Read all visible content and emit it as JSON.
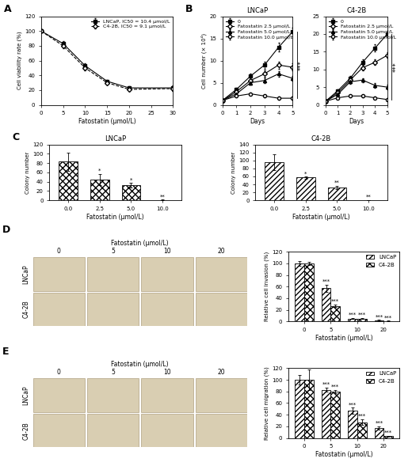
{
  "chart_data": [
    {
      "panel": "A",
      "type": "line",
      "x": [
        0,
        5,
        10,
        15,
        20,
        30
      ],
      "xlabel": "Fatostatin (μmol/L)",
      "ylabel": "Cell viability rate (%)",
      "xlim": [
        0,
        30
      ],
      "xticks": [
        0,
        5,
        10,
        15,
        20,
        25,
        30
      ],
      "ylim": [
        0,
        120
      ],
      "yticks": [
        0,
        20,
        40,
        60,
        80,
        100,
        120
      ],
      "legend": "upper right",
      "series": [
        {
          "name": "LNCaP, IC50 = 10.4 μmol/L",
          "color": "#000000",
          "marker": "square",
          "line_style": "solid",
          "values": [
            100,
            83,
            53,
            32,
            23,
            23
          ],
          "errors": [
            0,
            3,
            3,
            2,
            2,
            3
          ]
        },
        {
          "name": "C4-2B, IC50 = 9.1 μmol/L",
          "color": "#000000",
          "marker": "open_diamond",
          "line_style": "dashed",
          "values": [
            100,
            80,
            50,
            30,
            21,
            22
          ],
          "errors": [
            0,
            3,
            3,
            2,
            2,
            3
          ]
        }
      ]
    },
    {
      "panel": "B",
      "type": "line",
      "title": "LNCaP",
      "x": [
        0,
        1,
        2,
        3,
        4,
        5
      ],
      "xlabel": "Days",
      "ylabel": "Cell number (× 10⁴)",
      "xlim": [
        0,
        5
      ],
      "xticks": [
        0,
        1,
        2,
        3,
        4,
        5
      ],
      "ylim": [
        0,
        20
      ],
      "yticks": [
        0,
        5,
        10,
        15,
        20
      ],
      "legend": "upper left",
      "significance": "***",
      "series": [
        {
          "name": "0",
          "color": "#000000",
          "marker": "square",
          "line_style": "solid",
          "values": [
            1,
            3.5,
            6.5,
            9,
            13,
            16.5
          ],
          "errors": [
            0.2,
            0.4,
            0.6,
            0.8,
            1,
            1
          ]
        },
        {
          "name": "Fatostatin 2.5 μmol/L",
          "color": "#000000",
          "marker": "open_diamond",
          "line_style": "solid",
          "values": [
            1,
            3,
            5.5,
            7,
            9,
            8.5
          ],
          "errors": [
            0.2,
            0.4,
            0.6,
            0.8,
            0.8,
            0.8
          ]
        },
        {
          "name": "Fatostatin 5.0 μmol/L",
          "color": "#000000",
          "marker": "triangle",
          "line_style": "solid",
          "values": [
            1,
            2.5,
            5,
            5.5,
            7,
            6
          ],
          "errors": [
            0.2,
            0.4,
            0.5,
            0.6,
            0.6,
            0.6
          ]
        },
        {
          "name": "Fatostatin 10.0 μmol/L",
          "color": "#000000",
          "marker": "open_circle",
          "line_style": "solid",
          "values": [
            1,
            2,
            2.5,
            2,
            1.5,
            1.5
          ],
          "errors": [
            0.2,
            0.3,
            0.3,
            0.3,
            0.3,
            0.3
          ]
        }
      ]
    },
    {
      "type": "line",
      "title": "C4-2B",
      "x": [
        0,
        1,
        2,
        3,
        4,
        5
      ],
      "xlabel": "Days",
      "xlim": [
        0,
        5
      ],
      "xticks": [
        0,
        1,
        2,
        3,
        4,
        5
      ],
      "ylim": [
        0,
        25
      ],
      "yticks": [
        0,
        5,
        10,
        15,
        20,
        25
      ],
      "legend": "upper left",
      "significance": "***",
      "series": [
        {
          "name": "0",
          "color": "#000000",
          "marker": "square",
          "line_style": "solid",
          "values": [
            1,
            4,
            7.5,
            12,
            16,
            20
          ],
          "errors": [
            0.2,
            0.4,
            0.6,
            0.8,
            1,
            1
          ]
        },
        {
          "name": "Fatostatin 2.5 μmol/L",
          "color": "#000000",
          "marker": "open_diamond",
          "line_style": "solid",
          "values": [
            1,
            3.5,
            7,
            10.5,
            12,
            14
          ],
          "errors": [
            0.2,
            0.4,
            0.6,
            0.8,
            0.8,
            0.8
          ]
        },
        {
          "name": "Fatostatin 5.0 μmol/L",
          "color": "#000000",
          "marker": "triangle",
          "line_style": "solid",
          "values": [
            1,
            3,
            6.5,
            7,
            5.5,
            5
          ],
          "errors": [
            0.2,
            0.4,
            0.5,
            0.6,
            0.6,
            0.6
          ]
        },
        {
          "name": "Fatostatin 10.0 μmol/L",
          "color": "#000000",
          "marker": "open_circle",
          "line_style": "solid",
          "values": [
            1,
            2,
            2.5,
            2.5,
            2,
            1.5
          ],
          "errors": [
            0.2,
            0.3,
            0.3,
            0.3,
            0.3,
            0.3
          ]
        }
      ]
    },
    {
      "panel": "C",
      "type": "bar",
      "title": "LNCaP",
      "categories": [
        "0.0",
        "2.5",
        "5.0",
        "10.0"
      ],
      "xlabel": "Fatostatin (μmol/L)",
      "ylabel": "Colony number",
      "ylim": [
        0,
        120
      ],
      "yticks": [
        0,
        20,
        40,
        60,
        80,
        100,
        120
      ],
      "series": [
        {
          "color": "#ffffff",
          "values": [
            83,
            45,
            32,
            1
          ],
          "errors": [
            20,
            12,
            5,
            0.5
          ],
          "annotations": [
            null,
            "*",
            "*",
            "**"
          ]
        }
      ]
    },
    {
      "type": "bar",
      "title": "C4-2B",
      "categories": [
        "0.0",
        "2.5",
        "5.0",
        "10.0"
      ],
      "xlabel": "Fatostatin (μmol/L)",
      "ylabel": "Colony number",
      "ylim": [
        0,
        140
      ],
      "yticks": [
        0,
        20,
        40,
        60,
        80,
        100,
        120,
        140
      ],
      "series": [
        {
          "color": "#ffffff",
          "values": [
            95,
            57,
            33,
            1
          ],
          "errors": [
            20,
            3,
            4,
            0.5
          ],
          "annotations": [
            null,
            "*",
            "**",
            "**"
          ]
        }
      ]
    },
    {
      "panel": "D",
      "type": "image_grid",
      "title": "Fatostatin (μmol/L)",
      "columns": [
        "0",
        "5",
        "10",
        "20"
      ],
      "rows": [
        "LNCaP",
        "C4-2B"
      ]
    },
    {
      "type": "bar",
      "categories": [
        "0",
        "5",
        "10",
        "20"
      ],
      "xlabel": "Fatostatin (μmol/L)",
      "ylabel": "Relative cell invasion (%)",
      "ylim": [
        0,
        120
      ],
      "yticks": [
        0,
        20,
        40,
        60,
        80,
        100,
        120
      ],
      "legend": "upper right",
      "series": [
        {
          "name": "LNCaP",
          "color": "#ffffff",
          "values": [
            100,
            57,
            5,
            2
          ],
          "errors": [
            4,
            6,
            1,
            1
          ],
          "annotations": [
            null,
            "***",
            "***",
            "***"
          ]
        },
        {
          "name": "C4-2B",
          "color": "#ffffff",
          "values": [
            100,
            27,
            5,
            1
          ],
          "errors": [
            3,
            2,
            1,
            0.5
          ],
          "annotations": [
            null,
            "***",
            "***",
            "***"
          ]
        }
      ]
    },
    {
      "panel": "E",
      "type": "image_grid",
      "title": "Fatostatin (μmol/L)",
      "columns": [
        "0",
        "5",
        "10",
        "20"
      ],
      "rows": [
        "LNCaP",
        "C4-2B"
      ]
    },
    {
      "type": "bar",
      "categories": [
        "0",
        "5",
        "10",
        "20"
      ],
      "xlabel": "Fatostatin (μmol/L)",
      "ylabel": "Relative cell migration (%)",
      "ylim": [
        0,
        120
      ],
      "yticks": [
        0,
        20,
        40,
        60,
        80,
        100,
        120
      ],
      "legend": "upper right",
      "series": [
        {
          "name": "LNCaP",
          "color": "#ffffff",
          "values": [
            100,
            83,
            47,
            17
          ],
          "errors": [
            8,
            4,
            5,
            3
          ],
          "annotations": [
            null,
            "***",
            "***",
            "***"
          ]
        },
        {
          "name": "C4-2B",
          "color": "#ffffff",
          "values": [
            100,
            80,
            27,
            3
          ],
          "errors": [
            18,
            3,
            5,
            1
          ],
          "annotations": [
            null,
            "***",
            "***",
            "***"
          ]
        }
      ]
    }
  ]
}
